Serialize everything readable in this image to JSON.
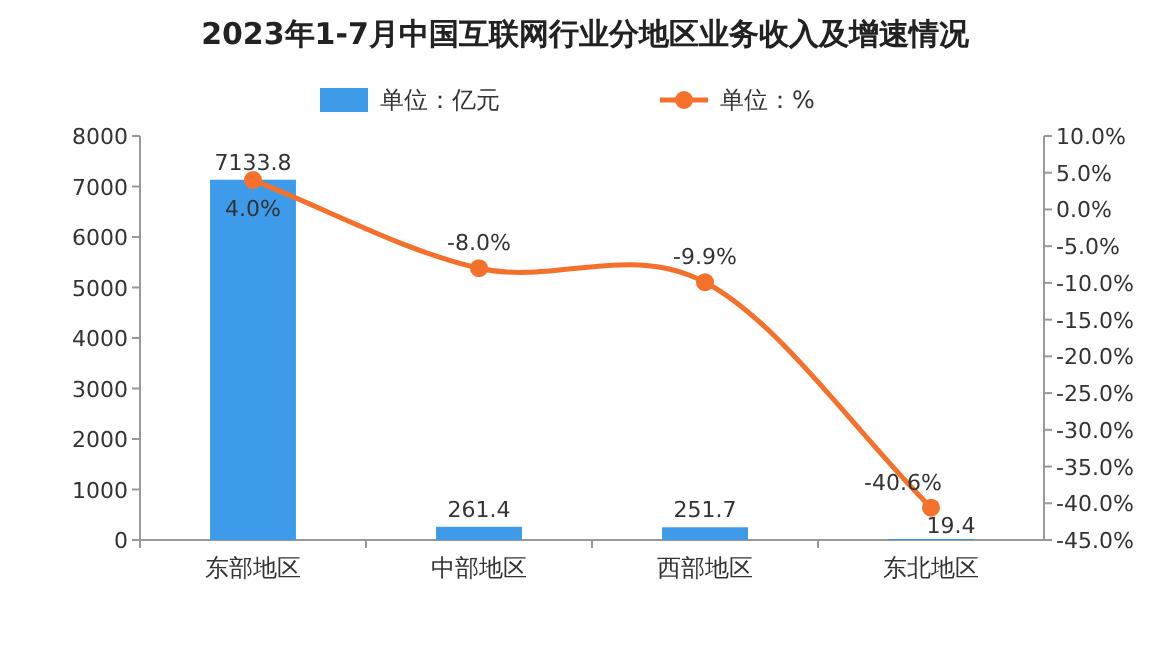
{
  "chart_data": {
    "type": "bar",
    "title": "2023年1-7月中国互联网行业分地区业务收入及增速情况",
    "categories": [
      "东部地区",
      "中部地区",
      "西部地区",
      "东北地区"
    ],
    "series": [
      {
        "name": "单位：亿元",
        "color": "#3d9be9",
        "values": [
          7133.8,
          261.4,
          251.7,
          19.4
        ],
        "value_labels": [
          "7133.8",
          "261.4",
          "251.7",
          "19.4"
        ]
      },
      {
        "name": "单位：%",
        "type": "line",
        "axis": "y2",
        "color": "#f5712b",
        "marker": "circle",
        "values": [
          4.0,
          -8.0,
          -9.9,
          -40.6
        ],
        "value_labels": [
          "4.0%",
          "-8.0%",
          "-9.9%",
          "-40.6%"
        ]
      }
    ],
    "ylim": [
      0,
      8000
    ],
    "yticks": [
      0,
      1000,
      2000,
      3000,
      4000,
      5000,
      6000,
      7000,
      8000
    ],
    "y2lim": [
      -45,
      10
    ],
    "y2ticks": [
      {
        "value": 10,
        "label": "10.0%"
      },
      {
        "value": 5,
        "label": "5.0%"
      },
      {
        "value": 0,
        "label": "0.0%"
      },
      {
        "value": -5,
        "label": "-5.0%"
      },
      {
        "value": -10,
        "label": "-10.0%"
      },
      {
        "value": -15,
        "label": "-15.0%"
      },
      {
        "value": -20,
        "label": "-20.0%"
      },
      {
        "value": -25,
        "label": "-25.0%"
      },
      {
        "value": -30,
        "label": "-30.0%"
      },
      {
        "value": -35,
        "label": "-35.0%"
      },
      {
        "value": -40,
        "label": "-40.0%"
      },
      {
        "value": -45,
        "label": "-45.0%"
      }
    ],
    "legend": "top"
  }
}
